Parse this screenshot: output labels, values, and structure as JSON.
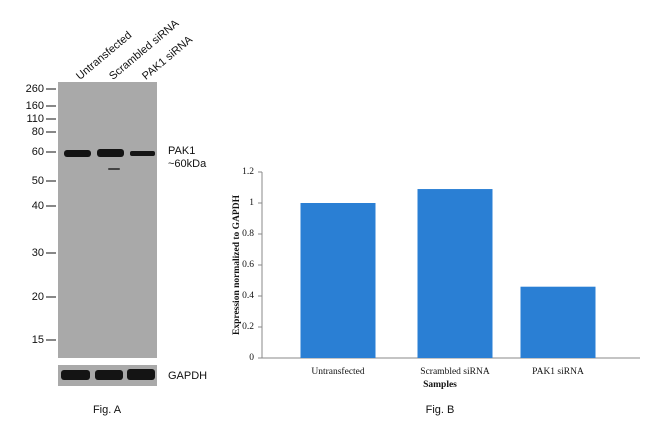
{
  "blot": {
    "lanes": [
      "Untransfected",
      "Scrambled siRNA",
      "PAK1 siRNA"
    ],
    "markers": [
      260,
      160,
      110,
      80,
      60,
      50,
      40,
      30,
      20,
      15
    ],
    "band_labels": [
      "PAK1",
      "~60kDa"
    ],
    "loading_label": "GAPDH",
    "caption": "Fig. A"
  },
  "chart_data": {
    "type": "bar",
    "caption": "Fig. B",
    "categories": [
      "Untransfected",
      "Scrambled siRNA",
      "PAK1 siRNA"
    ],
    "values": [
      1,
      1.09,
      0.46
    ],
    "color": "#2a7fd4",
    "x_label": "Samples",
    "y_label": "Expression normalized to GAPDH",
    "ylim": [
      0,
      1.2
    ],
    "yticks": [
      0,
      0.2,
      0.4,
      0.6,
      0.8,
      1,
      1.2
    ]
  }
}
